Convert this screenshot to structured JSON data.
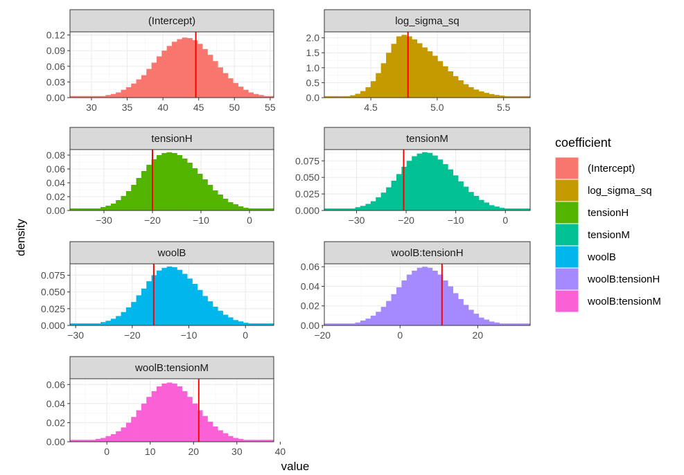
{
  "chart_data": {
    "type": "histogram-facets",
    "xlabel": "value",
    "ylabel": "density",
    "legend": {
      "title": "coefficient",
      "position": "right"
    },
    "grid": true,
    "panels": [
      {
        "strip": "(Intercept)",
        "color": "#F8766D",
        "xlim": [
          27,
          55.5
        ],
        "xticks": [
          30,
          35,
          40,
          45,
          50,
          55
        ],
        "ylim": [
          0,
          0.126
        ],
        "yticks": [
          "0.00",
          "0.03",
          "0.06",
          "0.09",
          "0.12"
        ],
        "vline": 44.6,
        "bins": 40,
        "density": [
          0.003,
          0.003,
          0.003,
          0.003,
          0.003,
          0.003,
          0.003,
          0.005,
          0.007,
          0.01,
          0.015,
          0.02,
          0.027,
          0.035,
          0.043,
          0.055,
          0.067,
          0.079,
          0.09,
          0.099,
          0.107,
          0.112,
          0.115,
          0.114,
          0.11,
          0.103,
          0.093,
          0.082,
          0.07,
          0.058,
          0.047,
          0.037,
          0.028,
          0.021,
          0.015,
          0.01,
          0.007,
          0.005,
          0.003,
          0.003
        ]
      },
      {
        "strip": "log_sigma_sq",
        "color": "#C49A00",
        "xlim": [
          4.15,
          5.7
        ],
        "xticks": [
          4.5,
          5.0,
          5.5
        ],
        "ylim": [
          0,
          2.2
        ],
        "yticks": [
          "0.0",
          "0.5",
          "1.0",
          "1.5",
          "2.0"
        ],
        "vline": 4.78,
        "bins": 40,
        "density": [
          0.05,
          0.05,
          0.05,
          0.05,
          0.05,
          0.08,
          0.13,
          0.22,
          0.35,
          0.55,
          0.82,
          1.15,
          1.5,
          1.8,
          2.05,
          2.1,
          2.05,
          1.95,
          1.82,
          1.68,
          1.55,
          1.4,
          1.22,
          1.05,
          0.88,
          0.72,
          0.58,
          0.45,
          0.35,
          0.27,
          0.21,
          0.16,
          0.12,
          0.09,
          0.07,
          0.05,
          0.05,
          0.05,
          0.05,
          0.05
        ]
      },
      {
        "strip": "tensionH",
        "color": "#53B400",
        "xlim": [
          -37,
          5
        ],
        "xticks": [
          -30,
          -20,
          -10,
          0
        ],
        "ylim": [
          0,
          0.088
        ],
        "yticks": [
          "0.00",
          "0.02",
          "0.04",
          "0.06",
          "0.08"
        ],
        "vline": -20,
        "bins": 40,
        "density": [
          0.003,
          0.003,
          0.003,
          0.003,
          0.003,
          0.003,
          0.005,
          0.007,
          0.01,
          0.015,
          0.021,
          0.028,
          0.037,
          0.047,
          0.057,
          0.066,
          0.074,
          0.08,
          0.083,
          0.084,
          0.083,
          0.08,
          0.075,
          0.069,
          0.061,
          0.053,
          0.045,
          0.037,
          0.029,
          0.023,
          0.017,
          0.012,
          0.009,
          0.006,
          0.004,
          0.003,
          0.003,
          0.003,
          0.003,
          0.003
        ]
      },
      {
        "strip": "tensionM",
        "color": "#00C094",
        "xlim": [
          -36.5,
          5
        ],
        "xticks": [
          -30,
          -20,
          -10,
          0
        ],
        "ylim": [
          0,
          0.092
        ],
        "yticks": [
          "0.000",
          "0.025",
          "0.050",
          "0.075"
        ],
        "vline": -20.5,
        "bins": 40,
        "density": [
          0.003,
          0.003,
          0.003,
          0.003,
          0.003,
          0.003,
          0.005,
          0.007,
          0.01,
          0.014,
          0.02,
          0.027,
          0.035,
          0.045,
          0.055,
          0.066,
          0.075,
          0.082,
          0.086,
          0.088,
          0.087,
          0.083,
          0.077,
          0.07,
          0.062,
          0.053,
          0.044,
          0.036,
          0.028,
          0.022,
          0.016,
          0.012,
          0.008,
          0.006,
          0.004,
          0.003,
          0.003,
          0.003,
          0.003,
          0.003
        ]
      },
      {
        "strip": "woolB",
        "color": "#00B6EB",
        "xlim": [
          -31,
          5
        ],
        "xticks": [
          -30,
          -20,
          -10,
          0
        ],
        "ylim": [
          0,
          0.092
        ],
        "yticks": [
          "0.000",
          "0.025",
          "0.050",
          "0.075"
        ],
        "vline": -16.2,
        "bins": 40,
        "density": [
          0.003,
          0.003,
          0.003,
          0.003,
          0.003,
          0.003,
          0.005,
          0.007,
          0.01,
          0.014,
          0.02,
          0.027,
          0.035,
          0.045,
          0.055,
          0.066,
          0.075,
          0.082,
          0.086,
          0.088,
          0.087,
          0.083,
          0.077,
          0.07,
          0.062,
          0.053,
          0.044,
          0.036,
          0.028,
          0.022,
          0.016,
          0.012,
          0.008,
          0.006,
          0.004,
          0.003,
          0.003,
          0.003,
          0.003,
          0.003
        ]
      },
      {
        "strip": "woolB:tensionH",
        "color": "#A58AFF",
        "xlim": [
          -19.5,
          33.5
        ],
        "xticks": [
          -20,
          0,
          20
        ],
        "ylim": [
          0,
          0.063
        ],
        "yticks": [
          "0.00",
          "0.02",
          "0.04",
          "0.06"
        ],
        "vline": 10.8,
        "bins": 40,
        "density": [
          0.002,
          0.002,
          0.002,
          0.002,
          0.002,
          0.002,
          0.003,
          0.005,
          0.007,
          0.01,
          0.014,
          0.019,
          0.025,
          0.032,
          0.039,
          0.046,
          0.052,
          0.056,
          0.059,
          0.06,
          0.059,
          0.056,
          0.052,
          0.046,
          0.04,
          0.033,
          0.027,
          0.021,
          0.016,
          0.012,
          0.008,
          0.006,
          0.004,
          0.003,
          0.002,
          0.002,
          0.002,
          0.002,
          0.002,
          0.002
        ]
      },
      {
        "strip": "woolB:tensionM",
        "color": "#FB61D7",
        "xlim": [
          -8.5,
          38.5
        ],
        "xticks": [
          0,
          10,
          20,
          30,
          40
        ],
        "ylim": [
          0,
          0.066
        ],
        "yticks": [
          "0.00",
          "0.02",
          "0.04",
          "0.06"
        ],
        "vline": 21.2,
        "bins": 40,
        "density": [
          0.002,
          0.002,
          0.002,
          0.002,
          0.002,
          0.003,
          0.004,
          0.006,
          0.008,
          0.011,
          0.015,
          0.02,
          0.026,
          0.033,
          0.04,
          0.047,
          0.053,
          0.058,
          0.061,
          0.062,
          0.061,
          0.058,
          0.053,
          0.047,
          0.04,
          0.033,
          0.027,
          0.021,
          0.016,
          0.012,
          0.009,
          0.006,
          0.004,
          0.003,
          0.002,
          0.002,
          0.002,
          0.002,
          0.002,
          0.002
        ]
      }
    ]
  }
}
